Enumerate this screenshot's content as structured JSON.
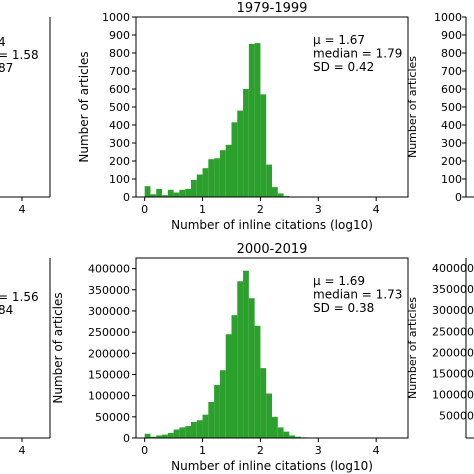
{
  "colors": {
    "bar": "#2ca02c",
    "axis": "#000000"
  },
  "fragments": {
    "left_top": [
      "4",
      "= 1.58",
      "87",
      "4"
    ],
    "left_bottom": [
      "= 1.56",
      "84",
      "4"
    ],
    "right_top": [
      "1000",
      "900",
      "800",
      "700",
      "600",
      "500",
      "400",
      "300",
      "200",
      "100",
      "0"
    ],
    "right_ylabel_top": "Number of articles",
    "right_bottom": [
      "400000",
      "350000",
      "300000",
      "250000",
      "200000",
      "150000",
      "100000",
      "50000"
    ],
    "right_ylabel_bottom": "Number of articles"
  },
  "chart_data": [
    {
      "type": "bar",
      "title": "1979-1999",
      "xlabel": "Number of inline citations (log10)",
      "ylabel": "Number of articles",
      "xlim": [
        -0.15,
        4.55
      ],
      "ylim": [
        0,
        1000
      ],
      "xticks": [
        "0",
        "1",
        "2",
        "3",
        "4"
      ],
      "yticks": [
        "0",
        "100",
        "200",
        "300",
        "400",
        "500",
        "600",
        "700",
        "800",
        "900",
        "1000"
      ],
      "bin_width": 0.1,
      "x": [
        0.0,
        0.1,
        0.2,
        0.3,
        0.4,
        0.5,
        0.6,
        0.7,
        0.8,
        0.9,
        1.0,
        1.1,
        1.2,
        1.3,
        1.4,
        1.5,
        1.6,
        1.7,
        1.8,
        1.9,
        2.0,
        2.1,
        2.2,
        2.3,
        2.4,
        2.5
      ],
      "values": [
        60,
        15,
        45,
        10,
        40,
        25,
        40,
        45,
        95,
        125,
        160,
        210,
        215,
        260,
        290,
        415,
        480,
        600,
        850,
        855,
        570,
        180,
        55,
        20,
        5,
        2
      ],
      "stats": [
        "μ = 1.67",
        "median = 1.79",
        "SD = 0.42"
      ]
    },
    {
      "type": "bar",
      "title": "2000-2019",
      "xlabel": "Number of inline citations (log10)",
      "ylabel": "Number of articles",
      "xlim": [
        -0.15,
        4.55
      ],
      "ylim": [
        0,
        425000
      ],
      "xticks": [
        "0",
        "1",
        "2",
        "3",
        "4"
      ],
      "yticks": [
        "0",
        "50000",
        "100000",
        "150000",
        "200000",
        "250000",
        "300000",
        "350000",
        "400000"
      ],
      "bin_width": 0.1,
      "x": [
        0.0,
        0.1,
        0.2,
        0.3,
        0.4,
        0.5,
        0.6,
        0.7,
        0.8,
        0.9,
        1.0,
        1.1,
        1.2,
        1.3,
        1.4,
        1.5,
        1.6,
        1.7,
        1.8,
        1.9,
        2.0,
        2.1,
        2.2,
        2.3,
        2.4,
        2.5,
        2.6,
        2.7,
        2.8,
        2.9,
        3.0
      ],
      "values": [
        10000,
        3000,
        6000,
        8000,
        12000,
        20000,
        25000,
        28000,
        38000,
        42000,
        55000,
        85000,
        125000,
        160000,
        245000,
        290000,
        370000,
        395000,
        330000,
        265000,
        165000,
        105000,
        50000,
        25000,
        15000,
        6000,
        3000,
        1500,
        800,
        400,
        200
      ],
      "stats": [
        "μ = 1.69",
        "median = 1.73",
        "SD = 0.38"
      ]
    }
  ]
}
